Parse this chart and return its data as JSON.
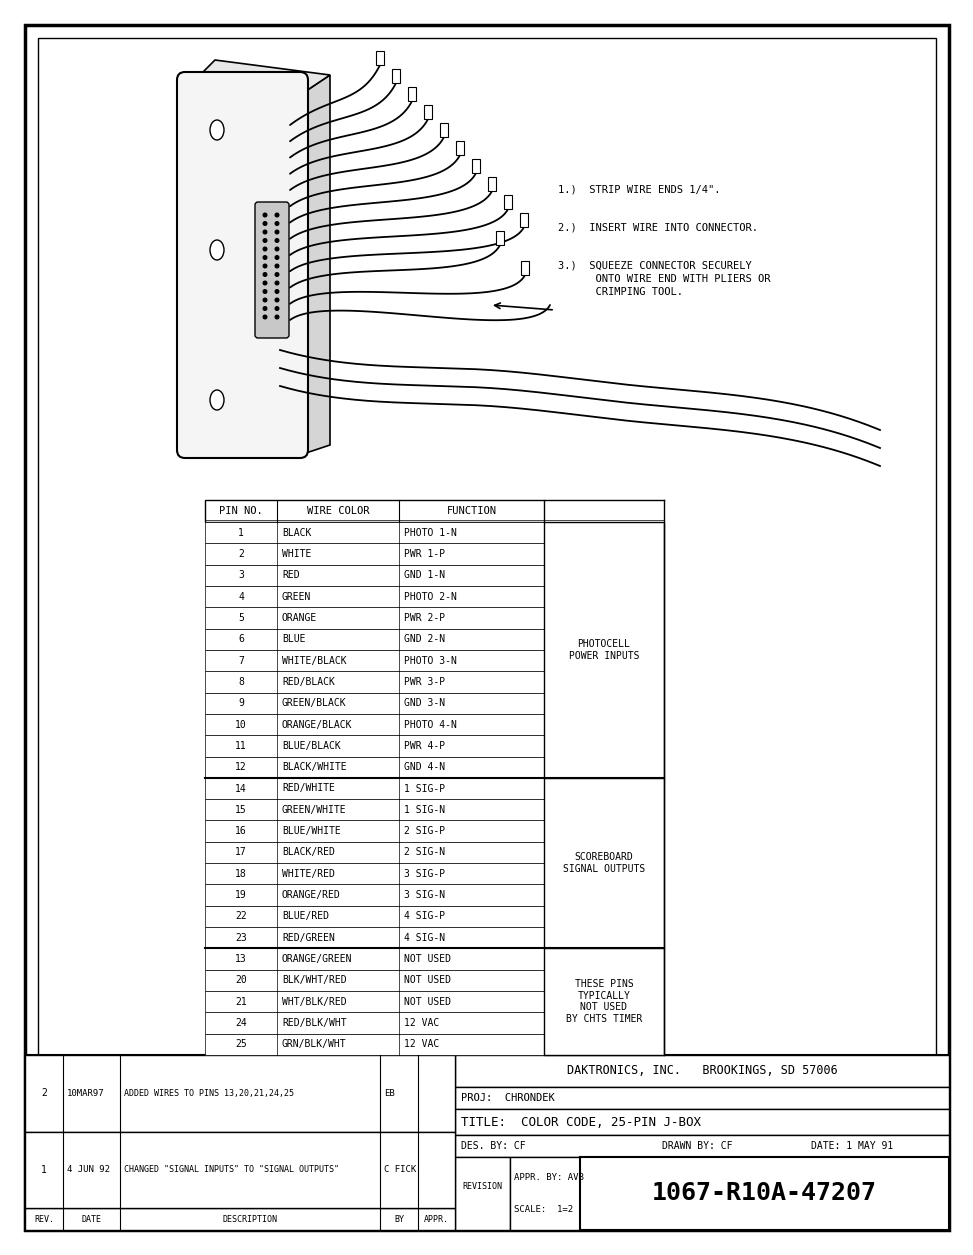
{
  "background_color": "#ffffff",
  "table_data": [
    [
      "1",
      "BLACK",
      "PHOTO 1-N"
    ],
    [
      "2",
      "WHITE",
      "PWR 1-P"
    ],
    [
      "3",
      "RED",
      "GND 1-N"
    ],
    [
      "4",
      "GREEN",
      "PHOTO 2-N"
    ],
    [
      "5",
      "ORANGE",
      "PWR 2-P"
    ],
    [
      "6",
      "BLUE",
      "GND 2-N"
    ],
    [
      "7",
      "WHITE/BLACK",
      "PHOTO 3-N"
    ],
    [
      "8",
      "RED/BLACK",
      "PWR 3-P"
    ],
    [
      "9",
      "GREEN/BLACK",
      "GND 3-N"
    ],
    [
      "10",
      "ORANGE/BLACK",
      "PHOTO 4-N"
    ],
    [
      "11",
      "BLUE/BLACK",
      "PWR 4-P"
    ],
    [
      "12",
      "BLACK/WHITE",
      "GND 4-N"
    ],
    [
      "14",
      "RED/WHITE",
      "1 SIG-P"
    ],
    [
      "15",
      "GREEN/WHITE",
      "1 SIG-N"
    ],
    [
      "16",
      "BLUE/WHITE",
      "2 SIG-P"
    ],
    [
      "17",
      "BLACK/RED",
      "2 SIG-N"
    ],
    [
      "18",
      "WHITE/RED",
      "3 SIG-P"
    ],
    [
      "19",
      "ORANGE/RED",
      "3 SIG-N"
    ],
    [
      "22",
      "BLUE/RED",
      "4 SIG-P"
    ],
    [
      "23",
      "RED/GREEN",
      "4 SIG-N"
    ],
    [
      "13",
      "ORANGE/GREEN",
      "NOT USED"
    ],
    [
      "20",
      "BLK/WHT/RED",
      "NOT USED"
    ],
    [
      "21",
      "WHT/BLK/RED",
      "NOT USED"
    ],
    [
      "24",
      "RED/BLK/WHT",
      "12 VAC"
    ],
    [
      "25",
      "GRN/BLK/WHT",
      "12 VAC"
    ]
  ],
  "col_headers": [
    "PIN NO.",
    "WIRE COLOR",
    "FUNCTION"
  ],
  "group1_label": "PHOTOCELL\nPOWER INPUTS",
  "group1_rows": [
    0,
    11
  ],
  "group2_label": "SCOREBOARD\nSIGNAL OUTPUTS",
  "group2_rows": [
    12,
    19
  ],
  "group3_label": "THESE PINS\nTYPICALLY\nNOT USED\nBY CHTS TIMER",
  "group3_rows": [
    20,
    24
  ],
  "company": "DAKTRONICS, INC.   BROOKINGS, SD 57006",
  "proj_label": "PROJ:",
  "proj": "CHRONDEK",
  "title_label": "TITLE:",
  "title_box": "COLOR CODE, 25-PIN J-BOX",
  "des_by_label": "DES. BY:",
  "des_by": "CF",
  "drawn_by_label": "DRAWN BY:",
  "drawn_by": "CF",
  "date_label": "DATE:",
  "date": "1 MAY 91",
  "revision_label": "REVISION",
  "appr_by_label": "APPR. BY:",
  "appr_by": "AVB",
  "scale_label": "SCALE:",
  "scale": "1=2",
  "drawing_num": "1067-R10A-47207",
  "revisions": [
    {
      "rev": "2",
      "date": "10MAR97",
      "desc": "ADDED WIRES TO PINS 13,20,21,24,25",
      "by": "EB",
      "appr": ""
    },
    {
      "rev": "1",
      "date": "4 JUN 92",
      "desc": "CHANGED \"SIGNAL INPUTS\" TO \"SIGNAL OUTPUTS\"",
      "by": "C FICK",
      "appr": ""
    }
  ],
  "rev_col_headers": [
    "REV.",
    "DATE",
    "DESCRIPTION",
    "BY",
    "APPR."
  ],
  "instructions": [
    "1.)  STRIP WIRE ENDS 1/4\".",
    "2.)  INSERT WIRE INTO CONNECTOR.",
    "3.)  SQUEEZE CONNECTOR SECURELY\n      ONTO WIRE END WITH PLIERS OR\n      CRIMPING TOOL."
  ]
}
